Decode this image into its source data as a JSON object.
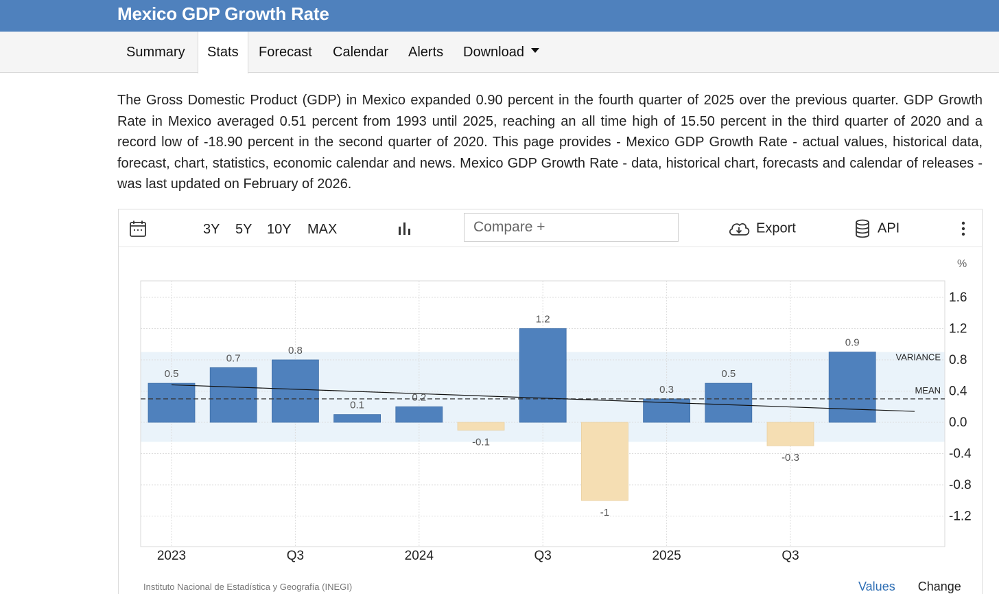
{
  "page": {
    "title": "Mexico GDP Growth Rate",
    "tabs": [
      {
        "label": "Summary"
      },
      {
        "label": "Stats"
      },
      {
        "label": "Forecast"
      },
      {
        "label": "Calendar"
      },
      {
        "label": "Alerts"
      },
      {
        "label": "Download"
      }
    ],
    "description": "The Gross Domestic Product (GDP) in Mexico expanded 0.90 percent in the fourth quarter of 2025 over the previous quarter. GDP Growth Rate in Mexico averaged 0.51 percent from 1993 until 2025, reaching an all time high of 15.50 percent in the third quarter of 2020 and a record low of -18.90 percent in the second quarter of 2020. This page provides - Mexico GDP Growth Rate - actual values, historical data, forecast, chart, statistics, economic calendar and news. Mexico GDP Growth Rate - data, historical chart, forecasts and calendar of releases - was last updated on February of 2026."
  },
  "toolbar": {
    "ranges": [
      "3Y",
      "5Y",
      "10Y",
      "MAX"
    ],
    "compare_placeholder": "Compare +",
    "export_label": "Export",
    "api_label": "API"
  },
  "footer": {
    "source": "Instituto Nacional de Estadística y Geografía (INEGI)",
    "links": [
      "Values",
      "Change"
    ]
  },
  "colors": {
    "header": "#4f81bd",
    "positive_bar": "#4f81bd",
    "negative_bar": "#f5deb3",
    "variance_band": "#eaf3fa"
  },
  "chart_data": {
    "type": "bar",
    "unit_label": "%",
    "categories": [
      "2023 Q1",
      "2023 Q2",
      "2023 Q3",
      "2023 Q4",
      "2024 Q1",
      "2024 Q2",
      "2024 Q3",
      "2024 Q4",
      "2025 Q1",
      "2025 Q2",
      "2025 Q3",
      "2025 Q4"
    ],
    "values": [
      0.5,
      0.7,
      0.8,
      0.1,
      0.2,
      -0.1,
      1.2,
      -1,
      0.3,
      0.5,
      -0.3,
      0.9
    ],
    "value_labels": [
      "0.5",
      "0.7",
      "0.8",
      "0.1",
      "0.2",
      "-0.1",
      "1.2",
      "-1",
      "0.3",
      "0.5",
      "-0.3",
      "0.9"
    ],
    "x_tick_labels": [
      {
        "index": 0,
        "label": "2023"
      },
      {
        "index": 2,
        "label": "Q3"
      },
      {
        "index": 4,
        "label": "2024"
      },
      {
        "index": 6,
        "label": "Q3"
      },
      {
        "index": 8,
        "label": "2025"
      },
      {
        "index": 10,
        "label": "Q3"
      }
    ],
    "y_ticks": [
      -1.2,
      -0.8,
      -0.4,
      0.0,
      0.4,
      0.8,
      1.2,
      1.6
    ],
    "y_tick_labels": [
      "-1.2",
      "-0.8",
      "-0.4",
      "0.0",
      "0.4",
      "0.8",
      "1.2",
      "1.6"
    ],
    "ylim": [
      -1.6,
      1.8
    ],
    "mean": 0.3,
    "mean_label": "MEAN",
    "variance_band": [
      -0.25,
      0.9
    ],
    "variance_label": "VARIANCE",
    "trendline": {
      "start": 0.48,
      "end": 0.14
    }
  }
}
